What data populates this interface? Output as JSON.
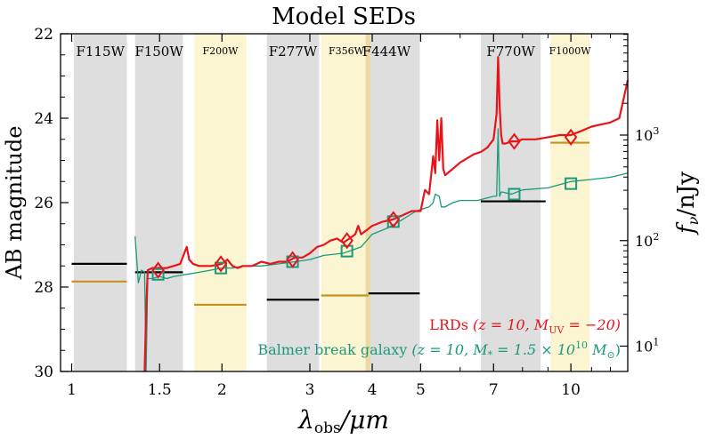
{
  "chart_data": {
    "type": "line",
    "title": "Model SEDs",
    "xlabel_main": "λ",
    "xlabel_sub": "obs",
    "xlabel_unit": "/μm",
    "ylabel": "AB magnitude",
    "ylabel_right_main": "f",
    "ylabel_right_sub": "ν",
    "ylabel_right_unit": "/nJy",
    "x_scale": "log",
    "xlim": [
      0.95,
      13.0
    ],
    "ylim": [
      30,
      22
    ],
    "x_ticks": [
      {
        "value": 1,
        "label": "1"
      },
      {
        "value": 1.5,
        "label": "1.5"
      },
      {
        "value": 2,
        "label": "2"
      },
      {
        "value": 3,
        "label": "3"
      },
      {
        "value": 4,
        "label": "4"
      },
      {
        "value": 5,
        "label": "5"
      },
      {
        "value": 7,
        "label": "7"
      },
      {
        "value": 10,
        "label": "10"
      }
    ],
    "y_ticks": [
      {
        "value": 22,
        "label": "22"
      },
      {
        "value": 24,
        "label": "24"
      },
      {
        "value": 26,
        "label": "26"
      },
      {
        "value": 28,
        "label": "28"
      },
      {
        "value": 30,
        "label": "30"
      }
    ],
    "right_ticks": [
      {
        "mag": 24.4,
        "base": "10",
        "exp": "3"
      },
      {
        "mag": 26.9,
        "base": "10",
        "exp": "2"
      },
      {
        "mag": 29.4,
        "base": "10",
        "exp": "1"
      }
    ],
    "filters": [
      {
        "name": "F115W",
        "lo": 1.01,
        "hi": 1.29,
        "color": "#dedede",
        "small": false
      },
      {
        "name": "F150W",
        "lo": 1.34,
        "hi": 1.67,
        "color": "#dedede",
        "small": false
      },
      {
        "name": "F200W",
        "lo": 1.76,
        "hi": 2.24,
        "color": "#fcf5d2",
        "small": true
      },
      {
        "name": "F277W",
        "lo": 2.46,
        "hi": 3.13,
        "color": "#dedede",
        "small": false
      },
      {
        "name": "F356W",
        "lo": 3.16,
        "hi": 3.93,
        "color": "#fcf5d2",
        "small": true
      },
      {
        "name": "F444W",
        "lo": 3.93,
        "hi": 4.98,
        "color": "#dedede",
        "small": false
      },
      {
        "name": "F770W",
        "lo": 6.6,
        "hi": 8.7,
        "color": "#dedede",
        "small": false
      },
      {
        "name": "F1000W",
        "lo": 9.1,
        "hi": 10.9,
        "color": "#fcf5d2",
        "small": true
      }
    ],
    "filter_overlap_color": "#ecd9a6",
    "depth_black": [
      {
        "lo": 1.0,
        "hi": 1.29,
        "mag": 27.45
      },
      {
        "lo": 1.34,
        "hi": 1.67,
        "mag": 27.65
      },
      {
        "lo": 2.46,
        "hi": 3.13,
        "mag": 28.3
      },
      {
        "lo": 3.93,
        "hi": 4.98,
        "mag": 28.15
      },
      {
        "lo": 6.6,
        "hi": 8.9,
        "mag": 25.97
      }
    ],
    "depth_gold": [
      {
        "lo": 1.0,
        "hi": 1.29,
        "mag": 27.87
      },
      {
        "lo": 1.76,
        "hi": 2.24,
        "mag": 28.42
      },
      {
        "lo": 3.16,
        "hi": 3.93,
        "mag": 28.2
      },
      {
        "lo": 9.1,
        "hi": 10.9,
        "mag": 24.58
      }
    ],
    "series": [
      {
        "name": "LRDs",
        "legend_params": "(z = 10, M",
        "legend_sub": "UV",
        "legend_tail": " = −20)",
        "color": "#e8141a",
        "x": [
          1.4,
          1.41,
          1.42,
          1.45,
          1.5,
          1.55,
          1.6,
          1.65,
          1.7,
          1.72,
          1.75,
          1.8,
          1.9,
          2.0,
          2.05,
          2.1,
          2.15,
          2.2,
          2.3,
          2.4,
          2.5,
          2.6,
          2.7,
          2.8,
          2.9,
          3.0,
          3.1,
          3.2,
          3.3,
          3.4,
          3.5,
          3.6,
          3.7,
          3.75,
          3.8,
          3.9,
          4.0,
          4.2,
          4.4,
          4.6,
          4.8,
          5.0,
          5.1,
          5.2,
          5.3,
          5.35,
          5.4,
          5.45,
          5.5,
          5.55,
          5.6,
          5.8,
          6.0,
          6.2,
          6.4,
          6.6,
          6.8,
          7.0,
          7.1,
          7.15,
          7.2,
          7.25,
          7.3,
          7.4,
          7.6,
          7.8,
          8.0,
          8.5,
          9.0,
          9.5,
          10.0,
          10.5,
          11.0,
          11.5,
          12.0,
          12.5,
          13.0
        ],
        "y": [
          30.0,
          28.6,
          27.6,
          27.55,
          27.55,
          27.55,
          27.5,
          27.45,
          27.05,
          27.35,
          27.45,
          27.5,
          27.5,
          27.45,
          27.35,
          27.5,
          27.55,
          27.5,
          27.5,
          27.4,
          27.45,
          27.4,
          27.4,
          27.3,
          27.3,
          27.2,
          27.05,
          27.0,
          26.9,
          26.85,
          26.95,
          26.85,
          26.75,
          26.55,
          26.75,
          26.65,
          26.55,
          26.45,
          26.4,
          26.3,
          26.2,
          26.2,
          25.7,
          25.8,
          24.9,
          25.3,
          24.05,
          25.0,
          24.0,
          25.2,
          25.35,
          25.2,
          25.05,
          24.95,
          24.85,
          24.8,
          24.7,
          24.5,
          23.9,
          22.55,
          23.7,
          24.4,
          24.6,
          24.6,
          24.55,
          24.55,
          24.5,
          24.5,
          24.45,
          24.4,
          24.4,
          24.3,
          24.2,
          24.15,
          24.1,
          24.0,
          23.1
        ]
      },
      {
        "name": "Balmer break galaxy",
        "legend_params": "(z = 10, M",
        "legend_sub": "*",
        "legend_mid": " = 1.5 × 10",
        "legend_sup": "10",
        "legend_tail": " M",
        "legend_tail_sub": "⊙",
        "legend_close": ")",
        "color": "#1a9a79",
        "x": [
          1.34,
          1.36,
          1.38,
          1.4,
          1.41,
          1.42,
          1.45,
          1.5,
          1.55,
          1.6,
          1.7,
          1.8,
          1.9,
          2.0,
          2.1,
          2.2,
          2.4,
          2.6,
          2.8,
          3.0,
          3.2,
          3.5,
          3.8,
          4.0,
          4.3,
          4.6,
          4.9,
          5.2,
          5.3,
          5.35,
          5.45,
          5.5,
          5.6,
          5.8,
          6.0,
          6.5,
          7.0,
          7.1,
          7.15,
          7.2,
          7.25,
          7.3,
          7.6,
          8.0,
          9.0,
          10.0,
          11.0,
          12.0,
          13.0
        ],
        "y": [
          26.8,
          27.9,
          27.6,
          27.65,
          30.0,
          27.8,
          27.8,
          27.75,
          27.8,
          27.75,
          27.7,
          27.65,
          27.6,
          27.55,
          27.55,
          27.5,
          27.5,
          27.45,
          27.4,
          27.35,
          27.25,
          27.2,
          27.05,
          26.75,
          26.6,
          26.4,
          26.2,
          26.1,
          26.0,
          25.8,
          25.85,
          26.1,
          26.1,
          26.0,
          25.95,
          25.95,
          25.85,
          25.85,
          24.25,
          25.85,
          25.75,
          25.75,
          25.8,
          25.7,
          25.65,
          25.5,
          25.45,
          25.4,
          25.3
        ]
      }
    ],
    "lrd_photometry": [
      {
        "x": 1.49,
        "mag": 27.6
      },
      {
        "x": 1.99,
        "mag": 27.45
      },
      {
        "x": 2.77,
        "mag": 27.35
      },
      {
        "x": 3.56,
        "mag": 26.9
      },
      {
        "x": 4.41,
        "mag": 26.4
      },
      {
        "x": 7.7,
        "mag": 24.55
      },
      {
        "x": 10.0,
        "mag": 24.45
      }
    ],
    "bbg_photometry": [
      {
        "x": 1.49,
        "mag": 27.7
      },
      {
        "x": 1.99,
        "mag": 27.55
      },
      {
        "x": 2.77,
        "mag": 27.4
      },
      {
        "x": 3.56,
        "mag": 27.15
      },
      {
        "x": 4.41,
        "mag": 26.45
      },
      {
        "x": 7.7,
        "mag": 25.8
      },
      {
        "x": 10.0,
        "mag": 25.55
      }
    ]
  }
}
